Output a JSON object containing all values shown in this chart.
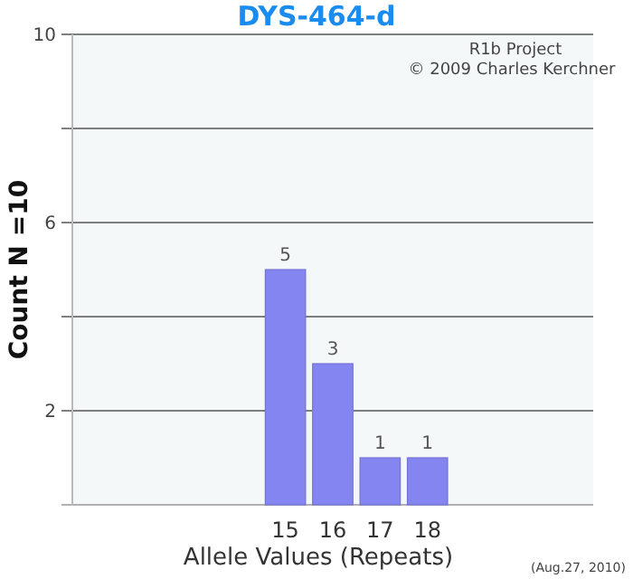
{
  "chart_data": {
    "type": "bar",
    "title": "DYS-464-d",
    "xlabel": "Allele Values (Repeats)",
    "ylabel": "Count N =10",
    "categories": [
      null,
      null,
      null,
      null,
      "15",
      "16",
      "17",
      "18",
      null,
      null,
      null
    ],
    "values": [
      null,
      null,
      null,
      null,
      5,
      3,
      1,
      1,
      null,
      null,
      null
    ],
    "color": "#8585f2",
    "data_labels": true,
    "ylim": [
      0,
      10
    ],
    "yticks": [
      {
        "value": 0,
        "label": null
      },
      2,
      {
        "value": 4,
        "label": null
      },
      6,
      {
        "value": 8,
        "label": null
      },
      10
    ],
    "grid": "y",
    "annotations": [
      "R1b Project",
      "© 2009 Charles Kerchner",
      "(Aug.27, 2010)"
    ]
  }
}
